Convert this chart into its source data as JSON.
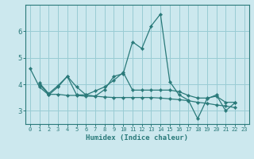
{
  "title": "",
  "xlabel": "Humidex (Indice chaleur)",
  "ylabel": "",
  "bg_color": "#cce8ee",
  "grid_color": "#99ccd4",
  "line_color": "#2a7a7a",
  "xlim": [
    -0.5,
    23.5
  ],
  "ylim": [
    2.5,
    7.0
  ],
  "xticks": [
    0,
    1,
    2,
    3,
    4,
    5,
    6,
    7,
    8,
    9,
    10,
    11,
    12,
    13,
    14,
    15,
    16,
    17,
    18,
    19,
    20,
    21,
    22,
    23
  ],
  "yticks": [
    3,
    4,
    5,
    6
  ],
  "series": [
    {
      "x": [
        0,
        1,
        2,
        3,
        4,
        5,
        6,
        7,
        8,
        9,
        10,
        11,
        12,
        13,
        14,
        15,
        16,
        17,
        18,
        19,
        20,
        21,
        22
      ],
      "y": [
        4.6,
        3.9,
        3.6,
        3.9,
        4.3,
        3.6,
        3.6,
        3.55,
        3.8,
        4.3,
        4.4,
        5.6,
        5.35,
        6.2,
        6.65,
        4.1,
        3.6,
        3.4,
        2.7,
        3.45,
        3.6,
        3.0,
        3.3
      ]
    },
    {
      "x": [
        1,
        2,
        3,
        4,
        5,
        6,
        7,
        8,
        9,
        10,
        11,
        12,
        13,
        14,
        15,
        16,
        17,
        18,
        19,
        20,
        21,
        22
      ],
      "y": [
        4.05,
        3.65,
        3.95,
        4.3,
        3.9,
        3.6,
        3.75,
        3.9,
        4.15,
        4.45,
        3.78,
        3.78,
        3.78,
        3.78,
        3.78,
        3.72,
        3.58,
        3.48,
        3.48,
        3.55,
        3.32,
        3.32
      ]
    },
    {
      "x": [
        1,
        2,
        3,
        4,
        5,
        6,
        7,
        8,
        9,
        10,
        11,
        12,
        13,
        14,
        15,
        16,
        17,
        18,
        19,
        20,
        21,
        22
      ],
      "y": [
        4.0,
        3.62,
        3.62,
        3.58,
        3.58,
        3.55,
        3.55,
        3.52,
        3.5,
        3.5,
        3.5,
        3.5,
        3.5,
        3.48,
        3.45,
        3.42,
        3.38,
        3.32,
        3.28,
        3.22,
        3.18,
        3.12
      ]
    }
  ]
}
